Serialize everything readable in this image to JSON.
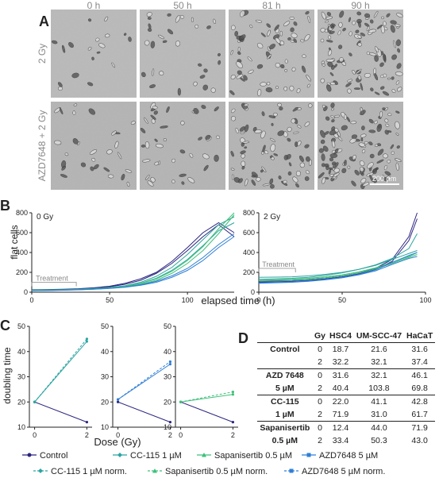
{
  "panels": {
    "A": "A",
    "B": "B",
    "C": "C",
    "D": "D"
  },
  "micrographs": {
    "times": [
      "0 h",
      "50 h",
      "81 h",
      "90 h"
    ],
    "rows": [
      "2 Gy",
      "AZD7648 + 2 Gy"
    ],
    "scale_bar": "200 µm"
  },
  "series_colors": {
    "Control": "#2b2580",
    "CC-115 1 µM": "#2ba5a0",
    "Sapanisertib 0.5 µM": "#3fc07a",
    "AZD7648 5 µM": "#2f7fd6"
  },
  "chart_data": [
    {
      "type": "line",
      "title": "0 Gy",
      "xlabel": "elapsed time (h)",
      "ylabel": "flat cells",
      "annotation": "Treatment",
      "xlim": [
        0,
        130
      ],
      "ylim": [
        0,
        800
      ],
      "xticks": [
        0,
        50,
        100
      ],
      "yticks": [
        0,
        200,
        400,
        600,
        800
      ],
      "x": [
        0,
        10,
        20,
        30,
        40,
        50,
        60,
        70,
        80,
        90,
        100,
        110,
        120,
        130
      ],
      "series": [
        {
          "name": "Control",
          "values": [
            20,
            22,
            25,
            30,
            40,
            55,
            80,
            120,
            190,
            290,
            420,
            560,
            680,
            560
          ]
        },
        {
          "name": "Control",
          "values": [
            25,
            27,
            30,
            35,
            45,
            60,
            90,
            135,
            200,
            310,
            450,
            600,
            700,
            600
          ]
        },
        {
          "name": "CC-115 1 µM",
          "values": [
            20,
            22,
            24,
            28,
            35,
            45,
            60,
            90,
            140,
            220,
            330,
            470,
            620,
            700
          ]
        },
        {
          "name": "CC-115 1 µM",
          "values": [
            22,
            24,
            26,
            30,
            38,
            48,
            65,
            100,
            160,
            250,
            380,
            530,
            680,
            760
          ]
        },
        {
          "name": "Sapanisertib 0.5 µM",
          "values": [
            18,
            20,
            22,
            26,
            32,
            40,
            55,
            80,
            120,
            190,
            290,
            420,
            590,
            780
          ]
        },
        {
          "name": "Sapanisertib 0.5 µM",
          "values": [
            20,
            22,
            24,
            28,
            34,
            44,
            60,
            88,
            135,
            210,
            320,
            460,
            640,
            800
          ]
        },
        {
          "name": "AZD7648 5 µM",
          "values": [
            15,
            17,
            20,
            24,
            30,
            38,
            50,
            70,
            100,
            150,
            220,
            320,
            450,
            560
          ]
        },
        {
          "name": "AZD7648 5 µM",
          "values": [
            16,
            18,
            21,
            25,
            31,
            40,
            52,
            75,
            110,
            165,
            240,
            350,
            480,
            590
          ]
        }
      ]
    },
    {
      "type": "line",
      "title": "2 Gy",
      "xlabel": "elapsed time (h)",
      "annotation": "Treatment",
      "xlim": [
        0,
        100
      ],
      "ylim": [
        0,
        800
      ],
      "xticks": [
        0,
        50,
        100
      ],
      "yticks": [
        0,
        200,
        400,
        600,
        800
      ],
      "x": [
        0,
        10,
        20,
        30,
        40,
        50,
        60,
        70,
        80,
        90,
        95
      ],
      "series": [
        {
          "name": "Control",
          "values": [
            110,
            115,
            120,
            130,
            145,
            165,
            195,
            240,
            330,
            560,
            800
          ]
        },
        {
          "name": "Control",
          "values": [
            100,
            105,
            110,
            120,
            135,
            155,
            185,
            230,
            310,
            520,
            740
          ]
        },
        {
          "name": "CC-115 1 µM",
          "values": [
            150,
            152,
            155,
            165,
            180,
            200,
            230,
            270,
            330,
            390,
            420
          ]
        },
        {
          "name": "CC-115 1 µM",
          "values": [
            130,
            135,
            140,
            150,
            170,
            195,
            230,
            275,
            340,
            440,
            590
          ]
        },
        {
          "name": "Sapanisertib 0.5 µM",
          "values": [
            120,
            125,
            130,
            140,
            155,
            175,
            205,
            245,
            300,
            360,
            400
          ]
        },
        {
          "name": "Sapanisertib 0.5 µM",
          "values": [
            115,
            118,
            122,
            130,
            145,
            165,
            195,
            235,
            290,
            350,
            380
          ]
        },
        {
          "name": "AZD7648 5 µM",
          "values": [
            90,
            95,
            100,
            110,
            125,
            145,
            175,
            215,
            280,
            340,
            360
          ]
        },
        {
          "name": "AZD7648 5 µM",
          "values": [
            95,
            100,
            105,
            115,
            130,
            150,
            180,
            225,
            300,
            370,
            400
          ]
        }
      ]
    },
    {
      "type": "line",
      "xlabel": "Dose (Gy)",
      "ylabel": "doubling time",
      "x": [
        0,
        2
      ],
      "ylim": [
        10,
        50
      ],
      "yticks": [
        10,
        20,
        30,
        40,
        50
      ],
      "series": [
        {
          "name": "Control",
          "values": [
            20,
            12
          ]
        },
        {
          "name": "CC-115 1 µM",
          "values": [
            20,
            44
          ]
        },
        {
          "name": "CC-115 1 µM norm.",
          "values": [
            20,
            45
          ]
        }
      ]
    },
    {
      "type": "line",
      "xlabel": "Dose (Gy)",
      "x": [
        0,
        2
      ],
      "ylim": [
        10,
        50
      ],
      "yticks": [
        10,
        20,
        30,
        40,
        50
      ],
      "series": [
        {
          "name": "Control",
          "values": [
            20,
            12
          ]
        },
        {
          "name": "AZD7648 5 µM",
          "values": [
            21,
            35
          ]
        },
        {
          "name": "AZD7648 5 µM norm.",
          "values": [
            21,
            36
          ]
        }
      ]
    },
    {
      "type": "line",
      "xlabel": "Dose (Gy)",
      "x": [
        0,
        2
      ],
      "ylim": [
        10,
        50
      ],
      "yticks": [
        10,
        20,
        30,
        40,
        50
      ],
      "series": [
        {
          "name": "Control",
          "values": [
            20,
            12
          ]
        },
        {
          "name": "Sapanisertib 0.5 µM",
          "values": [
            20,
            23
          ]
        },
        {
          "name": "Sapanisertib 0.5 µM norm.",
          "values": [
            20,
            24
          ]
        }
      ]
    },
    {
      "type": "table",
      "columns": [
        "",
        "Gy",
        "HSC4",
        "UM-SCC-47",
        "HaCaT"
      ],
      "rows": [
        [
          "Control",
          "0",
          "18.7",
          "21.6",
          "31.6"
        ],
        [
          "",
          "2",
          "32.2",
          "32.1",
          "37.4"
        ],
        [
          "AZD 7648",
          "0",
          "31.6",
          "32.1",
          "46.1"
        ],
        [
          "5 µM",
          "2",
          "40.4",
          "103.8",
          "69.8"
        ],
        [
          "CC-115",
          "0",
          "22.0",
          "41.1",
          "42.8"
        ],
        [
          "1 µM",
          "2",
          "71.9",
          "31.0",
          "61.7"
        ],
        [
          "Sapanisertib",
          "0",
          "12.4",
          "44.0",
          "71.9"
        ],
        [
          "0.5 µM",
          "2",
          "33.4",
          "50.3",
          "43.0"
        ]
      ]
    }
  ],
  "legend": {
    "row1": [
      "Control",
      "CC-115 1 µM",
      "Sapanisertib 0.5 µM",
      "AZD7648 5 µM"
    ],
    "row2": [
      "CC-115 1 µM norm.",
      "Sapanisertib 0.5 µM norm.",
      "AZD7648 5 µM norm."
    ]
  }
}
